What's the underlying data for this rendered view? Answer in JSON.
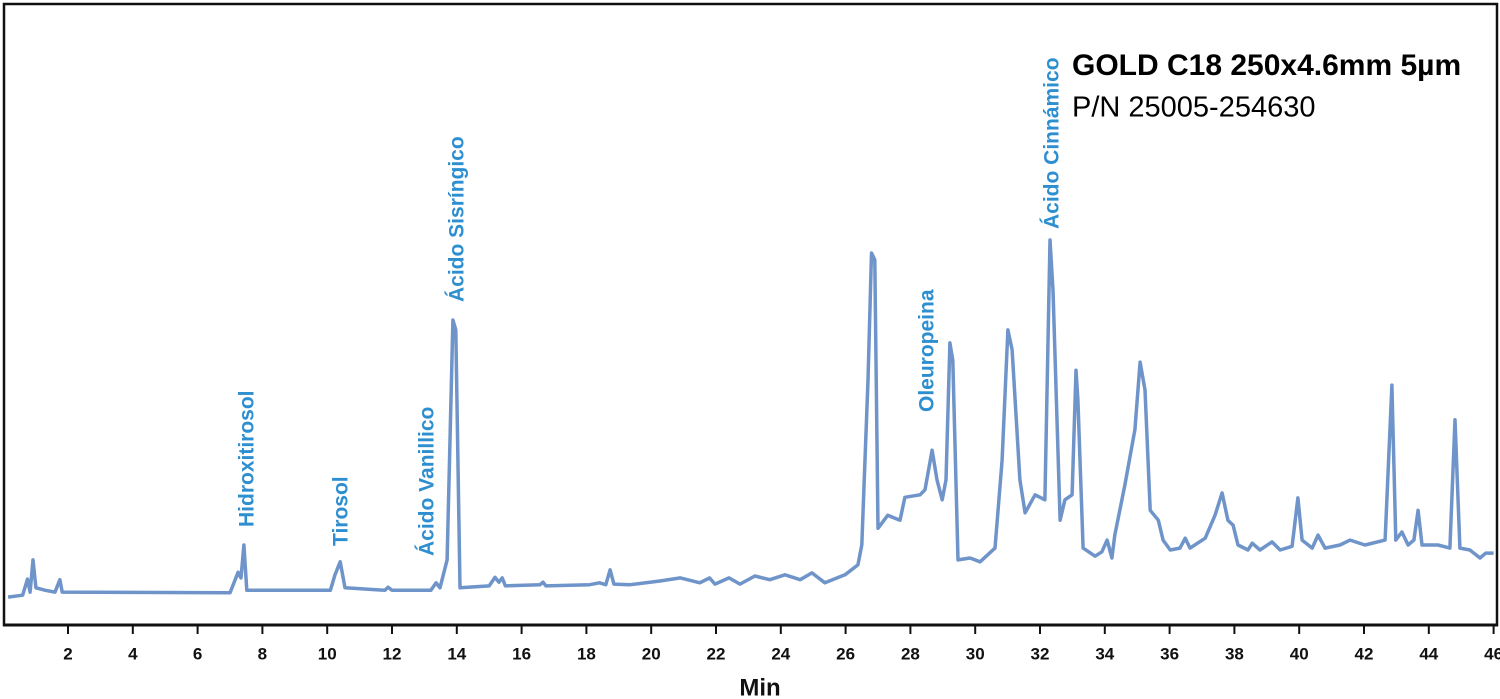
{
  "chart_data": {
    "type": "line",
    "title": "GOLD C18 250x4.6mm 5µm",
    "subtitle": "P/N 25005-254630",
    "x_label": "Min",
    "annotations": [
      "Hidroxitirosol",
      "Tirosol",
      "Ácido Vanillico",
      "Ácido Sisríngico",
      "Oleuropeina",
      "Ácido Cinnámico"
    ],
    "color": "#6f94c9",
    "xlim": [
      0,
      46
    ],
    "xticks": [
      2,
      4,
      6,
      8,
      10,
      12,
      14,
      16,
      18,
      20,
      22,
      24,
      26,
      28,
      30,
      32,
      34,
      36,
      38,
      40,
      42,
      44,
      46
    ],
    "ylim": [
      0,
      100
    ],
    "x": [
      0.15,
      0.6,
      0.75,
      0.83,
      0.92,
      1.01,
      1.3,
      1.6,
      1.75,
      1.82,
      7.0,
      7.25,
      7.34,
      7.43,
      7.52,
      10.1,
      10.24,
      10.4,
      10.55,
      11.78,
      11.88,
      12.0,
      13.2,
      13.36,
      13.48,
      13.7,
      13.88,
      13.97,
      14.1,
      15.0,
      15.18,
      15.3,
      15.4,
      15.5,
      16.57,
      16.66,
      16.75,
      18.1,
      18.4,
      18.6,
      18.73,
      18.85,
      19.35,
      20.27,
      20.9,
      21.5,
      21.8,
      21.97,
      22.4,
      22.74,
      23.2,
      23.66,
      24.13,
      24.6,
      24.96,
      25.36,
      25.98,
      26.38,
      26.5,
      26.69,
      26.8,
      26.9,
      27.0,
      27.3,
      27.68,
      27.83,
      28.3,
      28.45,
      28.67,
      28.82,
      28.98,
      29.1,
      29.22,
      29.31,
      29.47,
      29.84,
      30.15,
      30.61,
      30.83,
      31.01,
      31.14,
      31.38,
      31.54,
      31.85,
      32.15,
      32.31,
      32.4,
      32.62,
      32.77,
      32.99,
      33.11,
      33.17,
      33.33,
      33.7,
      33.91,
      34.07,
      34.22,
      34.31,
      34.62,
      34.93,
      35.09,
      35.24,
      35.4,
      35.65,
      35.8,
      36.02,
      36.32,
      36.48,
      36.63,
      37.1,
      37.4,
      37.62,
      37.8,
      37.96,
      38.11,
      38.42,
      38.55,
      38.79,
      39.16,
      39.41,
      39.78,
      39.96,
      40.09,
      40.4,
      40.58,
      40.8,
      41.26,
      41.57,
      42.03,
      42.65,
      42.86,
      42.98,
      43.17,
      43.36,
      43.54,
      43.67,
      43.79,
      44.28,
      44.65,
      44.81,
      44.96,
      45.27,
      45.58,
      45.76,
      46.0
    ],
    "values": [
      4.5,
      4.8,
      7.4,
      5.3,
      10.5,
      6.0,
      5.6,
      5.3,
      7.3,
      5.3,
      5.2,
      8.5,
      7.6,
      12.9,
      5.6,
      5.6,
      8.1,
      10.2,
      6.0,
      5.6,
      6.1,
      5.6,
      5.6,
      6.8,
      6.0,
      10.5,
      49.2,
      47.6,
      6.0,
      6.3,
      7.7,
      6.9,
      7.6,
      6.3,
      6.5,
      6.9,
      6.3,
      6.5,
      6.8,
      6.5,
      8.9,
      6.6,
      6.5,
      7.1,
      7.6,
      6.8,
      7.6,
      6.6,
      7.6,
      6.6,
      7.9,
      7.3,
      8.1,
      7.3,
      8.4,
      6.8,
      8.1,
      9.7,
      12.9,
      39.5,
      60.0,
      58.9,
      15.6,
      17.7,
      16.9,
      20.6,
      21.0,
      21.8,
      28.2,
      23.4,
      20.2,
      23.4,
      45.5,
      42.7,
      10.5,
      10.8,
      10.2,
      12.4,
      26.6,
      47.6,
      44.4,
      23.4,
      18.1,
      21.0,
      20.2,
      62.1,
      54.0,
      16.9,
      20.2,
      21.0,
      41.1,
      36.3,
      12.4,
      11.1,
      11.8,
      13.7,
      10.8,
      14.5,
      22.6,
      31.5,
      42.4,
      37.9,
      18.5,
      16.9,
      13.7,
      12.1,
      12.4,
      14.0,
      12.4,
      14.0,
      17.7,
      21.3,
      16.9,
      16.1,
      12.9,
      12.1,
      13.2,
      12.1,
      13.4,
      12.1,
      12.7,
      20.5,
      13.7,
      12.4,
      14.5,
      12.4,
      12.9,
      13.7,
      12.9,
      13.7,
      38.7,
      13.7,
      15.0,
      12.9,
      13.7,
      18.5,
      12.9,
      12.9,
      12.4,
      33.1,
      12.4,
      12.1,
      10.8,
      11.6,
      11.6
    ]
  }
}
